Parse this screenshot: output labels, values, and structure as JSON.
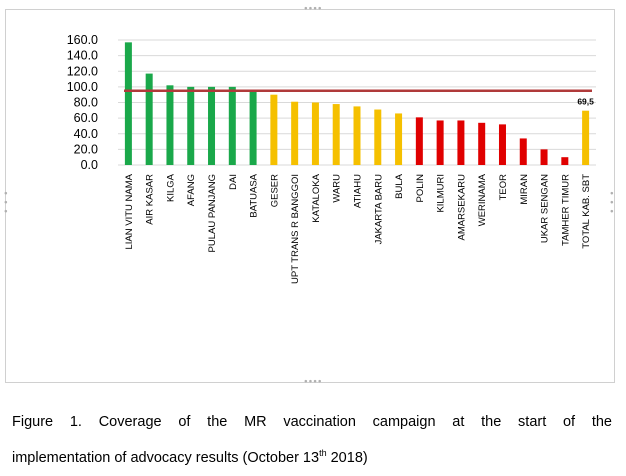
{
  "chart_data": {
    "type": "bar",
    "title": "",
    "xlabel": "",
    "ylabel": "",
    "ylim": [
      0,
      160
    ],
    "yticks": [
      0,
      20,
      40,
      60,
      80,
      100,
      120,
      140,
      160
    ],
    "ytick_labels": [
      "0.0",
      "20.0",
      "40.0",
      "60.0",
      "80.0",
      "100.0",
      "120.0",
      "140.0",
      "160.0"
    ],
    "grid": true,
    "target_line": {
      "value": 95,
      "color": "#b03a3a"
    },
    "categories": [
      "LIAN VITU NAMA",
      "AIR KASAR",
      "KILGA",
      "AFANG",
      "PULAU PANJANG",
      "DAI",
      "BATUASA",
      "GESER",
      "UPT TRANS R BANGGOI",
      "KATALOKA",
      "WARU",
      "ATIAHU",
      "JAKARTA BARU",
      "BULA",
      "POLIN",
      "KILMURI",
      "AMARSEKARU",
      "WERINAMA",
      "TEOR",
      "MIRAN",
      "UKAR SENGAN",
      "TAMHER TIMUR",
      "TOTAL KAB. SBT"
    ],
    "values": [
      157,
      117,
      102,
      100,
      100,
      100,
      96,
      90,
      81,
      80,
      78,
      75,
      71,
      66,
      61,
      57,
      57,
      54,
      52,
      34,
      20,
      10,
      69.5
    ],
    "bar_colors": [
      "#1aa84a",
      "#1aa84a",
      "#1aa84a",
      "#1aa84a",
      "#1aa84a",
      "#1aa84a",
      "#1aa84a",
      "#f5c000",
      "#f5c000",
      "#f5c000",
      "#f5c000",
      "#f5c000",
      "#f5c000",
      "#f5c000",
      "#e00000",
      "#e00000",
      "#e00000",
      "#e00000",
      "#e00000",
      "#e00000",
      "#e00000",
      "#e00000",
      "#f5c000"
    ],
    "data_labels": [
      {
        "index": 22,
        "text": "69,5"
      }
    ]
  },
  "caption": {
    "line1": "Figure 1. Coverage of the MR vaccination campaign at the start of the",
    "line2_before": "implementation of advocacy results (October 13",
    "line2_sup": "th",
    "line2_after": " 2018)"
  }
}
